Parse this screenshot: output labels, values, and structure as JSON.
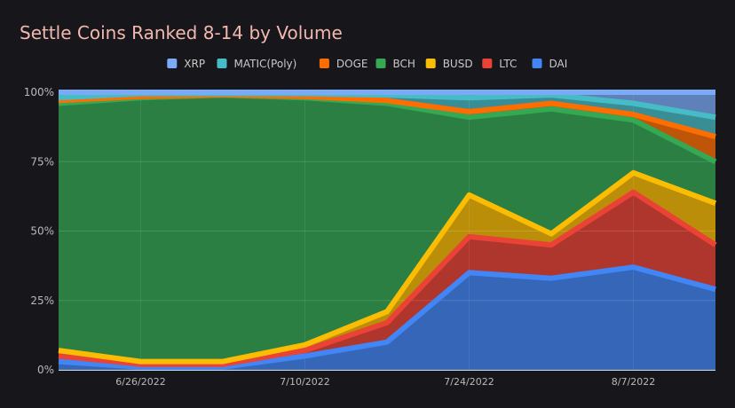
{
  "chart_data": {
    "type": "area",
    "stacked": true,
    "normalized": true,
    "title": "Settle Coins Ranked 8-14 by Volume",
    "legend_position": "top",
    "x": [
      "6/19/2022",
      "6/26/2022",
      "7/3/2022",
      "7/10/2022",
      "7/17/2022",
      "7/24/2022",
      "7/31/2022",
      "8/7/2022",
      "8/14/2022"
    ],
    "x_tick_labels": [
      "6/26/2022",
      "7/10/2022",
      "7/24/2022",
      "8/7/2022"
    ],
    "y_tick_labels": [
      "0%",
      "25%",
      "50%",
      "75%",
      "100%"
    ],
    "ylim": [
      0,
      100
    ],
    "grid": true,
    "legend_order": [
      "XRP",
      "MATIC(Poly)",
      "DOGE",
      "BCH",
      "BUSD",
      "LTC",
      "DAI"
    ],
    "series": [
      {
        "name": "DAI",
        "color": "#4285f4",
        "values": [
          3,
          1,
          1,
          5,
          10,
          35,
          33,
          37,
          29
        ]
      },
      {
        "name": "LTC",
        "color": "#ea4335",
        "values": [
          2,
          1,
          1,
          2,
          7,
          13,
          12,
          27,
          16
        ]
      },
      {
        "name": "BUSD",
        "color": "#fbbc04",
        "values": [
          2,
          1,
          1,
          2,
          4,
          15,
          4,
          7,
          15
        ]
      },
      {
        "name": "BCH",
        "color": "#34a853",
        "values": [
          89,
          95,
          96,
          89,
          75,
          28,
          45,
          19,
          15
        ]
      },
      {
        "name": "DOGE",
        "color": "#ff6d01",
        "values": [
          1,
          0.5,
          0,
          0.5,
          1,
          2,
          2,
          2,
          9
        ]
      },
      {
        "name": "MATIC(Poly)",
        "color": "#46bdc6",
        "values": [
          1,
          1,
          0.5,
          1,
          2,
          5,
          3,
          4,
          7
        ]
      },
      {
        "name": "XRP",
        "color": "#7baaf7",
        "values": [
          2,
          0.5,
          0.5,
          0.5,
          1,
          2,
          1,
          4,
          9
        ]
      }
    ]
  }
}
